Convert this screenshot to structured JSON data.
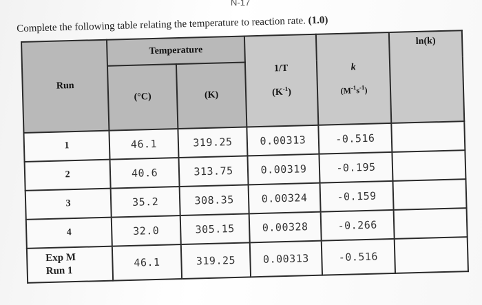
{
  "page": {
    "header_fragment": "N-17",
    "instructions": "Complete the following table relating the temperature to reaction rate.",
    "points": "(1.0)"
  },
  "table": {
    "headers": {
      "run": "Run",
      "temperature": "Temperature",
      "celsius": "(°C)",
      "kelvin": "(K)",
      "inv_t": "1/T",
      "inv_t_units_base": "(K",
      "inv_t_units_exp": "-1",
      "inv_t_units_close": ")",
      "k": "k",
      "k_units": "(M-1s-1)",
      "k_units_m": "(M",
      "k_units_m_exp": "-1",
      "k_units_s": "s",
      "k_units_s_exp": "-1",
      "k_units_close": ")",
      "lnk": "ln(k)"
    },
    "rows": [
      {
        "run": "1",
        "celsius": "46.1",
        "kelvin": "319.25",
        "inv_t": "0.00313",
        "k": "-0.516",
        "lnk": ""
      },
      {
        "run": "2",
        "celsius": "40.6",
        "kelvin": "313.75",
        "inv_t": "0.00319",
        "k": "-0.195",
        "lnk": ""
      },
      {
        "run": "3",
        "celsius": "35.2",
        "kelvin": "308.35",
        "inv_t": "0.00324",
        "k": "-0.159",
        "lnk": ""
      },
      {
        "run": "4",
        "celsius": "32.0",
        "kelvin": "305.15",
        "inv_t": "0.00328",
        "k": "-0.266",
        "lnk": ""
      },
      {
        "run": "Exp M Run 1",
        "celsius": "46.1",
        "kelvin": "319.25",
        "inv_t": "0.00313",
        "k": "-0.516",
        "lnk": ""
      }
    ]
  }
}
